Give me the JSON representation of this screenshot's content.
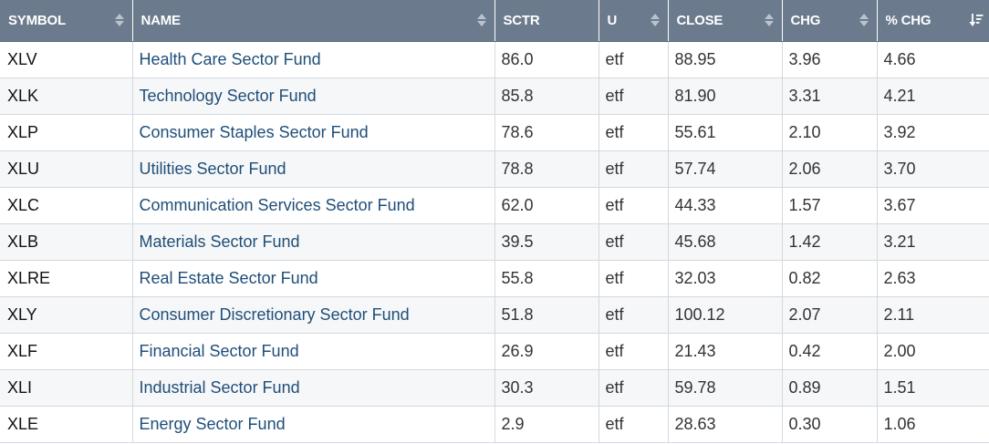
{
  "colors": {
    "header_bg": "#6b7a8d",
    "header_text": "#ffffff",
    "link": "#1f4e79",
    "row_alt": "#f6f7f8",
    "grid": "#d4d8dd"
  },
  "columns": [
    {
      "key": "symbol",
      "label": "SYMBOL",
      "sort_icon": "sort-both-icon"
    },
    {
      "key": "name",
      "label": "NAME",
      "sort_icon": "sort-both-icon"
    },
    {
      "key": "sctr",
      "label": "SCTR",
      "sort_icon": null
    },
    {
      "key": "u",
      "label": "U",
      "sort_icon": "sort-both-icon"
    },
    {
      "key": "close",
      "label": "CLOSE",
      "sort_icon": "sort-both-icon"
    },
    {
      "key": "chg",
      "label": "CHG",
      "sort_icon": "sort-both-icon"
    },
    {
      "key": "pct_chg",
      "label": "% CHG",
      "sort_icon": "sort-descending-icon"
    }
  ],
  "rows": [
    {
      "symbol": "XLV",
      "name": "Health Care Sector Fund",
      "sctr": "86.0",
      "u": "etf",
      "close": "88.95",
      "chg": "3.96",
      "pct_chg": "4.66"
    },
    {
      "symbol": "XLK",
      "name": "Technology Sector Fund",
      "sctr": "85.8",
      "u": "etf",
      "close": "81.90",
      "chg": "3.31",
      "pct_chg": "4.21"
    },
    {
      "symbol": "XLP",
      "name": "Consumer Staples Sector Fund",
      "sctr": "78.6",
      "u": "etf",
      "close": "55.61",
      "chg": "2.10",
      "pct_chg": "3.92"
    },
    {
      "symbol": "XLU",
      "name": "Utilities Sector Fund",
      "sctr": "78.8",
      "u": "etf",
      "close": "57.74",
      "chg": "2.06",
      "pct_chg": "3.70"
    },
    {
      "symbol": "XLC",
      "name": "Communication Services Sector Fund",
      "sctr": "62.0",
      "u": "etf",
      "close": "44.33",
      "chg": "1.57",
      "pct_chg": "3.67"
    },
    {
      "symbol": "XLB",
      "name": "Materials Sector Fund",
      "sctr": "39.5",
      "u": "etf",
      "close": "45.68",
      "chg": "1.42",
      "pct_chg": "3.21"
    },
    {
      "symbol": "XLRE",
      "name": "Real Estate Sector Fund",
      "sctr": "55.8",
      "u": "etf",
      "close": "32.03",
      "chg": "0.82",
      "pct_chg": "2.63"
    },
    {
      "symbol": "XLY",
      "name": "Consumer Discretionary Sector Fund",
      "sctr": "51.8",
      "u": "etf",
      "close": "100.12",
      "chg": "2.07",
      "pct_chg": "2.11"
    },
    {
      "symbol": "XLF",
      "name": "Financial Sector Fund",
      "sctr": "26.9",
      "u": "etf",
      "close": "21.43",
      "chg": "0.42",
      "pct_chg": "2.00"
    },
    {
      "symbol": "XLI",
      "name": "Industrial Sector Fund",
      "sctr": "30.3",
      "u": "etf",
      "close": "59.78",
      "chg": "0.89",
      "pct_chg": "1.51"
    },
    {
      "symbol": "XLE",
      "name": "Energy Sector Fund",
      "sctr": "2.9",
      "u": "etf",
      "close": "28.63",
      "chg": "0.30",
      "pct_chg": "1.06"
    }
  ]
}
